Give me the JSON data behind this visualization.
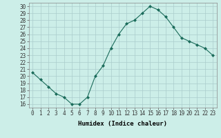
{
  "x": [
    0,
    1,
    2,
    3,
    4,
    5,
    6,
    7,
    8,
    9,
    10,
    11,
    12,
    13,
    14,
    15,
    16,
    17,
    18,
    19,
    20,
    21,
    22,
    23
  ],
  "y": [
    20.5,
    19.5,
    18.5,
    17.5,
    17.0,
    16.0,
    16.0,
    17.0,
    20.0,
    21.5,
    24.0,
    26.0,
    27.5,
    28.0,
    29.0,
    30.0,
    29.5,
    28.5,
    27.0,
    25.5,
    25.0,
    24.5,
    24.0,
    23.0
  ],
  "line_color": "#1a6b5a",
  "marker": "D",
  "marker_size": 2.0,
  "bg_color": "#cceee8",
  "grid_color": "#aacccc",
  "xlabel": "Humidex (Indice chaleur)",
  "xlim": [
    -0.5,
    23.5
  ],
  "ylim": [
    15.5,
    30.5
  ],
  "yticks": [
    16,
    17,
    18,
    19,
    20,
    21,
    22,
    23,
    24,
    25,
    26,
    27,
    28,
    29,
    30
  ],
  "xticks": [
    0,
    1,
    2,
    3,
    4,
    5,
    6,
    7,
    8,
    9,
    10,
    11,
    12,
    13,
    14,
    15,
    16,
    17,
    18,
    19,
    20,
    21,
    22,
    23
  ],
  "xtick_labels": [
    "0",
    "1",
    "2",
    "3",
    "4",
    "5",
    "6",
    "7",
    "8",
    "9",
    "10",
    "11",
    "12",
    "13",
    "14",
    "15",
    "16",
    "17",
    "18",
    "19",
    "20",
    "21",
    "22",
    "23"
  ],
  "tick_fontsize": 5.5,
  "xlabel_fontsize": 6.5
}
